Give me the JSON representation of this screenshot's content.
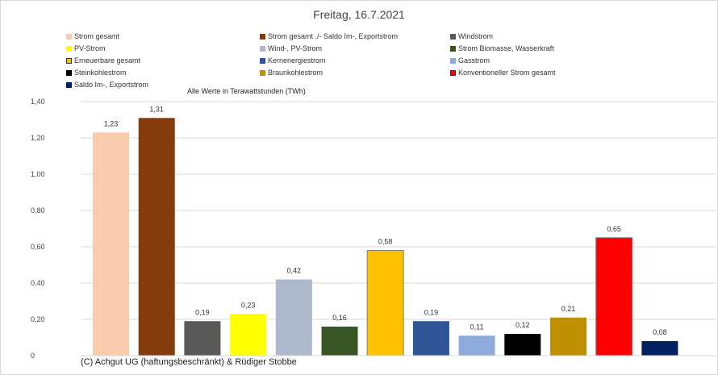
{
  "page_title": "Freitag, 16.7.2021",
  "unit_note": "Alle Werte in Terawattstunden (TWh)",
  "copyright": "(C) Achgut UG (haftungsbeschränkt) & Rüdiger Stobbe",
  "chart_data": {
    "type": "bar",
    "title": "Freitag, 16.7.2021",
    "xlabel": "",
    "ylabel": "",
    "ylim": [
      0,
      1.4
    ],
    "grid": true,
    "legend_position": "top",
    "y_ticks": [
      "0",
      "0,20",
      "0,40",
      "0,60",
      "0,80",
      "1,00",
      "1,20",
      "1,40"
    ],
    "categories": [
      "Strom gesamt",
      "Strom gesamt ./- Saldo Im-, Exportstrom",
      "Windstrom",
      "PV-Strom",
      "Wind-, PV-Strom",
      "Strom Biomasse, Wasserkraft",
      "Erneuerbare gesamt",
      "Kernenergiestrom",
      "Gasstrom",
      "Steinkohlestrom",
      "Braunkohlestrom",
      "Konventioneller Strom gesamt",
      "Saldo Im-, Exportstrom"
    ],
    "values": [
      1.23,
      1.31,
      0.19,
      0.23,
      0.42,
      0.16,
      0.58,
      0.19,
      0.11,
      0.12,
      0.21,
      0.65,
      0.08
    ],
    "value_labels": [
      "1,23",
      "1,31",
      "0,19",
      "0,23",
      "0,42",
      "0,16",
      "0,58",
      "0,19",
      "0,11",
      "0,12",
      "0,21",
      "0,65",
      "0,08"
    ],
    "colors": [
      "#f8cbad",
      "#843c0c",
      "#595959",
      "#ffff00",
      "#adb9ca",
      "#375623",
      "#ffc000",
      "#2f5597",
      "#8faadc",
      "#000000",
      "#bf9000",
      "#ff0000",
      "#002060"
    ]
  }
}
